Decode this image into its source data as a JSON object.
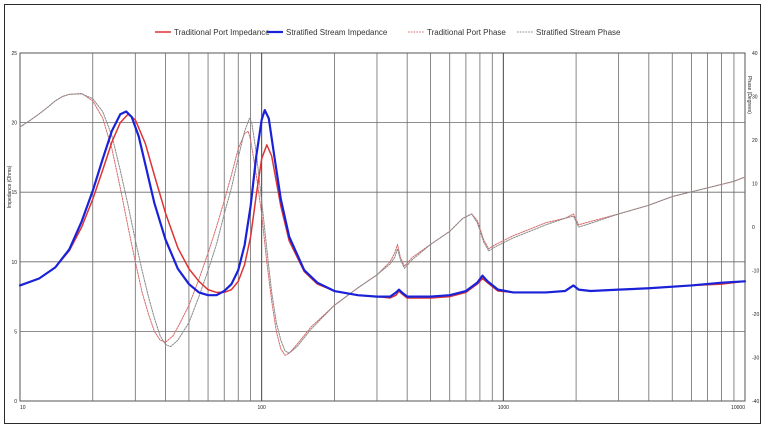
{
  "chart_data": {
    "type": "line",
    "x_scale": "log",
    "xlim": [
      10,
      10000
    ],
    "x_ticks": [
      10,
      100,
      1000,
      10000
    ],
    "ylim": [
      0,
      25
    ],
    "y_ticks": [
      0,
      5,
      10,
      15,
      20,
      25
    ],
    "ylabel": "Impedance (Ohms)",
    "y2lim": [
      -40,
      40
    ],
    "y2_ticks": [
      -40,
      -30,
      -20,
      -10,
      0,
      10,
      20,
      30,
      40
    ],
    "y2label": "Phase (Degrees)",
    "grid": true,
    "legend": "top",
    "series": [
      {
        "name": "Traditional Port Impedance",
        "axis": "left",
        "color": "#dd3333",
        "style": "solid",
        "points": [
          [
            10,
            8.3
          ],
          [
            12,
            8.8
          ],
          [
            14,
            9.6
          ],
          [
            16,
            10.8
          ],
          [
            18,
            12.5
          ],
          [
            20,
            14.5
          ],
          [
            22,
            16.6
          ],
          [
            24,
            18.6
          ],
          [
            26,
            20.0
          ],
          [
            28,
            20.6
          ],
          [
            30,
            20.2
          ],
          [
            33,
            18.5
          ],
          [
            36,
            16.2
          ],
          [
            40,
            13.5
          ],
          [
            45,
            11.0
          ],
          [
            50,
            9.5
          ],
          [
            55,
            8.6
          ],
          [
            60,
            8.0
          ],
          [
            65,
            7.8
          ],
          [
            70,
            7.8
          ],
          [
            75,
            8.0
          ],
          [
            80,
            8.6
          ],
          [
            85,
            9.8
          ],
          [
            90,
            11.8
          ],
          [
            95,
            14.8
          ],
          [
            100,
            17.4
          ],
          [
            105,
            18.4
          ],
          [
            110,
            17.6
          ],
          [
            120,
            14.0
          ],
          [
            130,
            11.5
          ],
          [
            150,
            9.3
          ],
          [
            170,
            8.4
          ],
          [
            200,
            7.9
          ],
          [
            250,
            7.6
          ],
          [
            300,
            7.5
          ],
          [
            340,
            7.4
          ],
          [
            360,
            7.6
          ],
          [
            370,
            7.9
          ],
          [
            380,
            7.7
          ],
          [
            400,
            7.4
          ],
          [
            500,
            7.4
          ],
          [
            600,
            7.5
          ],
          [
            700,
            7.8
          ],
          [
            780,
            8.4
          ],
          [
            820,
            8.8
          ],
          [
            860,
            8.5
          ],
          [
            950,
            7.9
          ],
          [
            1100,
            7.8
          ],
          [
            1500,
            7.8
          ],
          [
            1800,
            7.9
          ],
          [
            1950,
            8.3
          ],
          [
            2050,
            8.0
          ],
          [
            2300,
            7.9
          ],
          [
            3000,
            8.0
          ],
          [
            4000,
            8.1
          ],
          [
            6000,
            8.3
          ],
          [
            8000,
            8.4
          ],
          [
            10000,
            8.6
          ]
        ]
      },
      {
        "name": "Stratified Stream Impedance",
        "axis": "left",
        "color": "#1a22d8",
        "style": "solid",
        "points": [
          [
            10,
            8.3
          ],
          [
            12,
            8.8
          ],
          [
            14,
            9.6
          ],
          [
            16,
            10.9
          ],
          [
            18,
            12.9
          ],
          [
            20,
            15.1
          ],
          [
            22,
            17.4
          ],
          [
            24,
            19.4
          ],
          [
            26,
            20.6
          ],
          [
            27.5,
            20.8
          ],
          [
            29,
            20.4
          ],
          [
            31,
            19.0
          ],
          [
            33,
            17.0
          ],
          [
            36,
            14.2
          ],
          [
            40,
            11.6
          ],
          [
            45,
            9.5
          ],
          [
            50,
            8.4
          ],
          [
            55,
            7.8
          ],
          [
            60,
            7.6
          ],
          [
            65,
            7.6
          ],
          [
            70,
            7.9
          ],
          [
            75,
            8.4
          ],
          [
            80,
            9.4
          ],
          [
            85,
            11.2
          ],
          [
            90,
            14.0
          ],
          [
            95,
            17.6
          ],
          [
            100,
            20.2
          ],
          [
            103,
            20.9
          ],
          [
            107,
            20.3
          ],
          [
            113,
            17.5
          ],
          [
            120,
            14.5
          ],
          [
            130,
            11.8
          ],
          [
            150,
            9.4
          ],
          [
            170,
            8.5
          ],
          [
            200,
            7.9
          ],
          [
            250,
            7.6
          ],
          [
            300,
            7.5
          ],
          [
            340,
            7.5
          ],
          [
            360,
            7.8
          ],
          [
            370,
            8.0
          ],
          [
            380,
            7.8
          ],
          [
            400,
            7.5
          ],
          [
            500,
            7.5
          ],
          [
            600,
            7.6
          ],
          [
            700,
            7.9
          ],
          [
            780,
            8.5
          ],
          [
            820,
            9.0
          ],
          [
            860,
            8.6
          ],
          [
            950,
            8.0
          ],
          [
            1100,
            7.8
          ],
          [
            1500,
            7.8
          ],
          [
            1800,
            7.9
          ],
          [
            1950,
            8.3
          ],
          [
            2050,
            8.0
          ],
          [
            2300,
            7.9
          ],
          [
            3000,
            8.0
          ],
          [
            4000,
            8.1
          ],
          [
            6000,
            8.3
          ],
          [
            8000,
            8.5
          ],
          [
            10000,
            8.6
          ]
        ]
      },
      {
        "name": "Traditional Port Phase",
        "axis": "right",
        "color": "#d66a6a",
        "style": "dotted",
        "points": [
          [
            10,
            23
          ],
          [
            11,
            24.5
          ],
          [
            12,
            26
          ],
          [
            13,
            27.5
          ],
          [
            14,
            29
          ],
          [
            15,
            30
          ],
          [
            16,
            30.5
          ],
          [
            18,
            30.7
          ],
          [
            20,
            29
          ],
          [
            22,
            25
          ],
          [
            24,
            18
          ],
          [
            26,
            9
          ],
          [
            28,
            0
          ],
          [
            30,
            -8
          ],
          [
            32,
            -15
          ],
          [
            34,
            -20
          ],
          [
            36,
            -24
          ],
          [
            38,
            -26
          ],
          [
            40,
            -26.5
          ],
          [
            43,
            -25
          ],
          [
            46,
            -22
          ],
          [
            50,
            -18
          ],
          [
            55,
            -12
          ],
          [
            60,
            -6
          ],
          [
            65,
            0
          ],
          [
            70,
            6
          ],
          [
            75,
            12
          ],
          [
            80,
            18
          ],
          [
            85,
            21.5
          ],
          [
            88,
            22
          ],
          [
            90,
            20
          ],
          [
            95,
            12
          ],
          [
            100,
            3
          ],
          [
            105,
            -8
          ],
          [
            110,
            -17
          ],
          [
            115,
            -24
          ],
          [
            120,
            -28
          ],
          [
            125,
            -29.5
          ],
          [
            130,
            -29
          ],
          [
            140,
            -27
          ],
          [
            160,
            -23
          ],
          [
            200,
            -18
          ],
          [
            250,
            -14
          ],
          [
            300,
            -11
          ],
          [
            340,
            -8
          ],
          [
            355,
            -6
          ],
          [
            365,
            -4
          ],
          [
            375,
            -7
          ],
          [
            390,
            -9
          ],
          [
            420,
            -7
          ],
          [
            500,
            -4
          ],
          [
            600,
            -1
          ],
          [
            680,
            2
          ],
          [
            740,
            3
          ],
          [
            780,
            1.5
          ],
          [
            830,
            -3
          ],
          [
            870,
            -5
          ],
          [
            930,
            -4
          ],
          [
            1100,
            -2
          ],
          [
            1500,
            1
          ],
          [
            1800,
            2
          ],
          [
            1950,
            3
          ],
          [
            2050,
            0.5
          ],
          [
            2200,
            1
          ],
          [
            3000,
            3
          ],
          [
            4000,
            5
          ],
          [
            5000,
            7
          ],
          [
            7000,
            9
          ],
          [
            9000,
            10.5
          ],
          [
            10000,
            11.5
          ]
        ]
      },
      {
        "name": "Stratified Stream Phase",
        "axis": "right",
        "color": "#8a8a8a",
        "style": "dotted",
        "points": [
          [
            10,
            23
          ],
          [
            11,
            24.5
          ],
          [
            12,
            26
          ],
          [
            13,
            27.5
          ],
          [
            14,
            29
          ],
          [
            15,
            30
          ],
          [
            16,
            30.5
          ],
          [
            18,
            30.6
          ],
          [
            20,
            29.5
          ],
          [
            22,
            26.5
          ],
          [
            24,
            21
          ],
          [
            26,
            13
          ],
          [
            28,
            5
          ],
          [
            30,
            -3
          ],
          [
            32,
            -10
          ],
          [
            34,
            -16
          ],
          [
            36,
            -21
          ],
          [
            38,
            -25
          ],
          [
            40,
            -27
          ],
          [
            42,
            -27.5
          ],
          [
            45,
            -26
          ],
          [
            50,
            -22
          ],
          [
            55,
            -16
          ],
          [
            60,
            -10
          ],
          [
            65,
            -4
          ],
          [
            70,
            3
          ],
          [
            75,
            9
          ],
          [
            80,
            16
          ],
          [
            85,
            22
          ],
          [
            89,
            25
          ],
          [
            91,
            24
          ],
          [
            95,
            17
          ],
          [
            100,
            6
          ],
          [
            105,
            -5
          ],
          [
            110,
            -15
          ],
          [
            115,
            -22
          ],
          [
            120,
            -26
          ],
          [
            125,
            -28.5
          ],
          [
            130,
            -29
          ],
          [
            140,
            -27.5
          ],
          [
            160,
            -23.5
          ],
          [
            200,
            -18
          ],
          [
            250,
            -14
          ],
          [
            300,
            -11
          ],
          [
            340,
            -8.5
          ],
          [
            355,
            -7
          ],
          [
            365,
            -5
          ],
          [
            375,
            -7.5
          ],
          [
            390,
            -9.5
          ],
          [
            420,
            -7.5
          ],
          [
            500,
            -4
          ],
          [
            600,
            -1
          ],
          [
            680,
            2
          ],
          [
            740,
            3
          ],
          [
            780,
            1
          ],
          [
            830,
            -3.5
          ],
          [
            870,
            -5.5
          ],
          [
            930,
            -4.5
          ],
          [
            1100,
            -2.5
          ],
          [
            1500,
            0.5
          ],
          [
            1800,
            2
          ],
          [
            1950,
            2.5
          ],
          [
            2050,
            0
          ],
          [
            2200,
            0.5
          ],
          [
            3000,
            3
          ],
          [
            4000,
            5
          ],
          [
            5000,
            7
          ],
          [
            7000,
            9
          ],
          [
            9000,
            10.5
          ],
          [
            10000,
            11.5
          ]
        ]
      }
    ]
  }
}
